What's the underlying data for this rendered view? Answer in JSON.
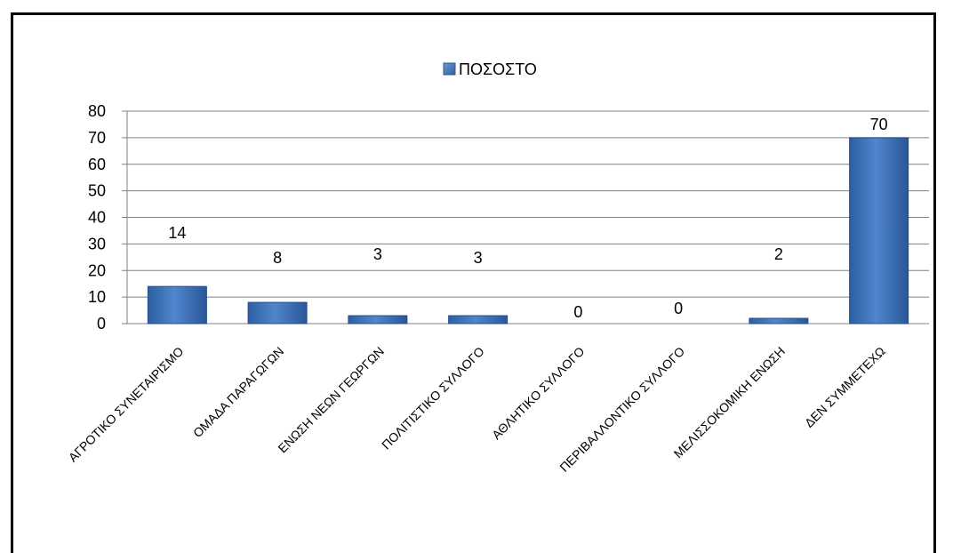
{
  "chart_data": {
    "type": "bar",
    "categories": [
      "ΑΓΡΟΤΙΚΟ ΣΥΝΕΤΑΙΡΙΣΜΟ",
      "ΟΜΑΔΑ ΠΑΡΑΓΩΓΩΝ",
      "ΕΝΩΣΗ ΝΕΩΝ ΓΕΩΡΓΩΝ",
      "ΠΟΛΙΤΙΣΤΙΚΟ ΣΥΛΛΟΓΟ",
      "ΑΘΛΗΤΙΚΟ ΣΥΛΛΟΓΟ",
      "ΠΕΡΙΒΑΛΛΟΝΤΙΚΟ ΣΥΛΛΟΓΟ",
      "ΜΕΛΙΣΣΟΚΟΜΙΚΗ ΕΝΩΣΗ",
      "ΔΕΝ ΣΥΜΜΕΤΕΧΩ"
    ],
    "series": [
      {
        "name": "ΠΟΣΟΣΤΟ",
        "values": [
          14,
          8,
          3,
          3,
          0,
          0,
          2,
          70
        ]
      }
    ],
    "ylim": [
      0,
      80
    ],
    "yticks": [
      0,
      10,
      20,
      30,
      40,
      50,
      60,
      70,
      80
    ],
    "grid": true,
    "legend_position": "top-center",
    "bar_color": "#4a7ebb"
  }
}
